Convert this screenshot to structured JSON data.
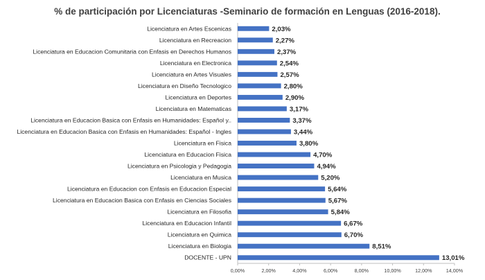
{
  "chart_data": {
    "type": "bar",
    "orientation": "horizontal",
    "title": "% de participación por Licenciaturas -Seminario de formación en Lenguas (2016-2018).",
    "xlabel": "",
    "ylabel": "",
    "xlim": [
      0,
      14
    ],
    "grid": false,
    "bar_color": "#4472c4",
    "x_ticks": [
      "0,00%",
      "2,00%",
      "4,00%",
      "6,00%",
      "8,00%",
      "10,00%",
      "12,00%",
      "14,00%"
    ],
    "categories": [
      "Licenciatura en Artes Escenicas",
      "Licenciatura en Recreacion",
      "Licenciatura en Educacion Comunitaria con Enfasis en Derechos Humanos",
      "Licenciatura en Electronica",
      "Licenciatura en Artes Visuales",
      "Licenciatura en Diseño Tecnologico",
      "Licenciatura en Deportes",
      "Licenciatura en Matematicas",
      "Licenciatura en Educacion Basica con Enfasis en Humanidades: Español y..",
      "Licenciatura en Educacion Basica con Enfasis en Humanidades: Español - Ingles",
      "Licenciatura en Fisica",
      "Licenciatura en Educacion Fisica",
      "Licenciatura en Psicologia y Pedagogia",
      "Licenciatura en Musica",
      "Licenciatura en Educacion  con Enfasis en Educacion Especial",
      "Licenciatura en Educacion Basica con Enfasis en Ciencias Sociales",
      "Licenciatura en Filosofia",
      "Licenciatura en Educacion Infantil",
      "Licenciatura en Quimica",
      "Licenciatura en Biologia",
      "DOCENTE - UPN"
    ],
    "values": [
      2.03,
      2.27,
      2.37,
      2.54,
      2.57,
      2.8,
      2.9,
      3.17,
      3.37,
      3.44,
      3.8,
      4.7,
      4.94,
      5.2,
      5.64,
      5.67,
      5.84,
      6.67,
      6.7,
      8.51,
      13.01
    ],
    "value_labels": [
      "2,03%",
      "2,27%",
      "2,37%",
      "2,54%",
      "2,57%",
      "2,80%",
      "2,90%",
      "3,17%",
      "3,37%",
      "3,44%",
      "3,80%",
      "4,70%",
      "4,94%",
      "5,20%",
      "5,64%",
      "5,67%",
      "5,84%",
      "6,67%",
      "6,70%",
      "8,51%",
      "13,01%"
    ]
  }
}
